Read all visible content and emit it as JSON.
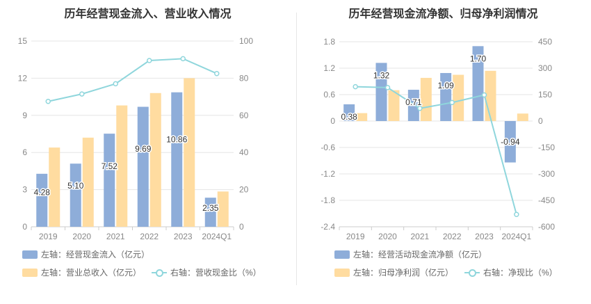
{
  "colors": {
    "bar_left": "#8eadd9",
    "bar_right": "#ffdca0",
    "line": "#8fd6dc",
    "grid": "#e6e6e6",
    "axis_text": "#666666"
  },
  "chart_data": [
    {
      "type": "bar",
      "title": "历年经营现金流入、营业收入情况",
      "categories": [
        "2019",
        "2020",
        "2021",
        "2022",
        "2023",
        "2024Q1"
      ],
      "left_axis": {
        "ticks": [
          0,
          3,
          6,
          9,
          12,
          15
        ],
        "range": [
          0,
          15
        ]
      },
      "right_axis": {
        "ticks": [
          0,
          20,
          40,
          60,
          80,
          100
        ],
        "range": [
          0,
          100
        ]
      },
      "series": [
        {
          "name": "左轴：经营现金流入（亿元）",
          "kind": "bar",
          "axis": "left",
          "values": [
            4.28,
            5.1,
            7.52,
            9.69,
            10.86,
            2.35
          ],
          "labels": [
            "4.28",
            "5.10",
            "7.52",
            "9.69",
            "10.86",
            "2.35"
          ]
        },
        {
          "name": "左轴：营业总收入（亿元）",
          "kind": "bar",
          "axis": "left",
          "values": [
            6.4,
            7.2,
            9.8,
            10.8,
            12.0,
            2.85
          ]
        },
        {
          "name": "右轴：营收现金比（%）",
          "kind": "line",
          "axis": "right",
          "values": [
            67.5,
            71.5,
            77.0,
            89.5,
            90.5,
            82.5
          ]
        }
      ]
    },
    {
      "type": "bar",
      "title": "历年经营现金流净额、归母净利润情况",
      "categories": [
        "2019",
        "2020",
        "2021",
        "2022",
        "2023",
        "2024Q1"
      ],
      "left_axis": {
        "ticks": [
          -2.4,
          -1.8,
          -1.2,
          -0.6,
          0,
          0.6,
          1.2,
          1.8
        ],
        "tick_labels": [
          "-2.4",
          "-1.8",
          "-1.2",
          "-0.6",
          "0",
          "0.6",
          "1.2",
          "1.8"
        ],
        "range": [
          -2.4,
          1.8
        ]
      },
      "right_axis": {
        "ticks": [
          -600,
          -450,
          -300,
          -150,
          0,
          150,
          300,
          450
        ],
        "range": [
          -600,
          450
        ]
      },
      "series": [
        {
          "name": "左轴：经营活动现金流净额（亿元）",
          "kind": "bar",
          "axis": "left",
          "values": [
            0.38,
            1.32,
            0.71,
            1.09,
            1.7,
            -0.94
          ],
          "labels": [
            "0.38",
            "1.32",
            "0.71",
            "1.09",
            "1.70",
            "-0.94"
          ]
        },
        {
          "name": "左轴：归母净利润（亿元）",
          "kind": "bar",
          "axis": "left",
          "values": [
            0.18,
            0.7,
            0.98,
            1.05,
            1.14,
            0.17
          ]
        },
        {
          "name": "右轴：净现比（%）",
          "kind": "line",
          "axis": "right",
          "values": [
            195,
            190,
            72,
            105,
            148,
            -530
          ]
        }
      ]
    }
  ]
}
